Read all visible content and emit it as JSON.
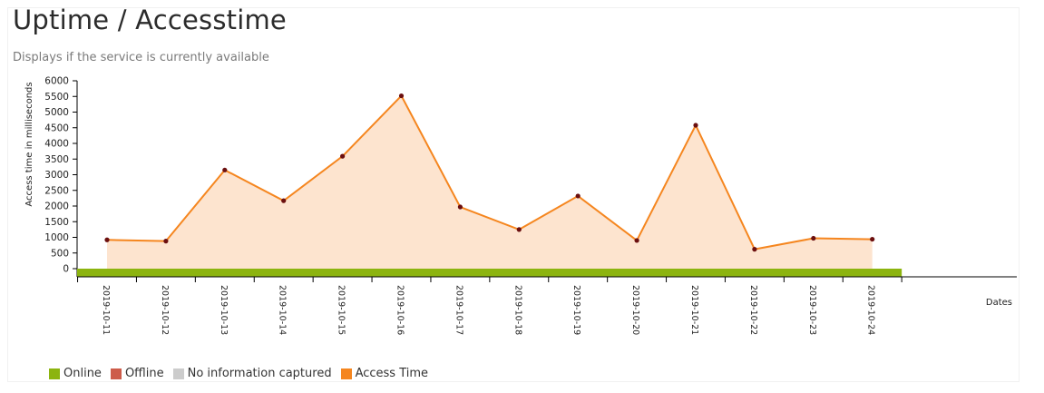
{
  "header": {
    "title": "Uptime / Accesstime",
    "subtitle": "Displays if the service is currently available"
  },
  "legend": [
    {
      "label": "Online",
      "color": "#8cb40f"
    },
    {
      "label": "Offline",
      "color": "#cd5c4a"
    },
    {
      "label": "No information captured",
      "color": "#cccccc"
    },
    {
      "label": "Access Time",
      "color": "#f5861f"
    }
  ],
  "chart_data": {
    "type": "area",
    "xlabel": "Dates",
    "ylabel": "Access time in milliseconds",
    "ylim": [
      0,
      6000
    ],
    "yticks": [
      0,
      500,
      1000,
      1500,
      2000,
      2500,
      3000,
      3500,
      4000,
      4500,
      5000,
      5500,
      6000
    ],
    "categories": [
      "2019-10-11",
      "2019-10-12",
      "2019-10-13",
      "2019-10-14",
      "2019-10-15",
      "2019-10-16",
      "2019-10-17",
      "2019-10-18",
      "2019-10-19",
      "2019-10-20",
      "2019-10-21",
      "2019-10-22",
      "2019-10-23",
      "2019-10-24"
    ],
    "series": [
      {
        "name": "Access Time",
        "color": "#f5861f",
        "fill": "#fde4cf",
        "point_color": "#6b0f0f",
        "values": [
          920,
          880,
          3150,
          2170,
          3590,
          5520,
          1970,
          1250,
          2320,
          900,
          4580,
          620,
          970,
          940
        ]
      }
    ],
    "status_bar": {
      "status": "Online",
      "color": "#8cb40f"
    },
    "grid": false
  }
}
